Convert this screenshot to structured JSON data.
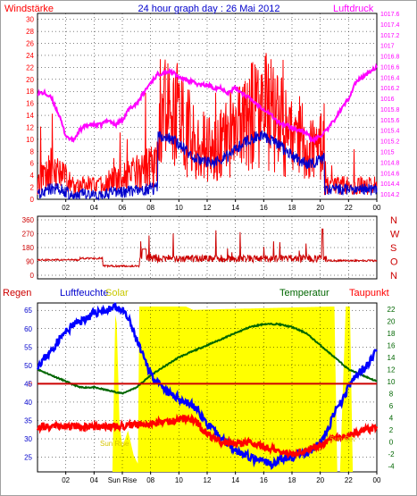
{
  "header": {
    "left_label": "Windstärke",
    "title": "24 hour graph day : 26 Mai 2012",
    "right_label": "Luftdruck"
  },
  "x_ticks": [
    "02",
    "04",
    "06",
    "08",
    "10",
    "12",
    "14",
    "16",
    "18",
    "20",
    "22",
    "00"
  ],
  "x_ticks_bottom": [
    "02",
    "04",
    "Sun Rise",
    "08",
    "10",
    "12",
    "14",
    "16",
    "18",
    "20",
    "22",
    "00"
  ],
  "colors": {
    "wind": "#ff0000",
    "gust": "#0000cc",
    "pressure": "#ff00ff",
    "direction": "#cc0000",
    "temperature": "#006600",
    "dewpoint": "#ff0000",
    "humidity": "#0000ff",
    "solar": "#ffff00",
    "rain": "#cc0000"
  },
  "chart_data": [
    {
      "type": "line",
      "panel": "wind-pressure",
      "series": [
        {
          "name": "Windstärke",
          "axis": "left"
        },
        {
          "name": "Luftdruck",
          "axis": "right",
          "x": [
            0,
            0.5,
            1,
            1.5,
            2,
            2.5,
            3,
            3.5,
            4,
            4.5,
            5,
            5.5,
            6,
            6.5,
            7,
            7.5,
            8,
            8.5,
            9,
            9.5,
            10,
            10.5,
            11,
            11.5,
            12,
            12.5,
            13,
            13.5,
            14,
            14.5,
            15,
            15.5,
            16,
            16.5,
            17,
            17.5,
            18,
            18.5,
            19,
            19.5,
            20,
            20.5,
            21,
            21.5,
            22,
            22.5,
            23,
            23.5,
            24
          ],
          "values": [
            1016.1,
            1016.1,
            1016.0,
            1015.7,
            1015.3,
            1015.2,
            1015.4,
            1015.5,
            1015.5,
            1015.5,
            1015.6,
            1015.5,
            1015.6,
            1015.8,
            1015.9,
            1016.1,
            1016.3,
            1016.45,
            1016.5,
            1016.5,
            1016.4,
            1016.35,
            1016.3,
            1016.25,
            1016.25,
            1016.2,
            1016.2,
            1016.1,
            1016.2,
            1016.1,
            1016.0,
            1015.9,
            1015.8,
            1015.7,
            1015.55,
            1015.5,
            1015.45,
            1015.4,
            1015.35,
            1015.2,
            1015.3,
            1015.4,
            1015.6,
            1015.8,
            1016.0,
            1016.3,
            1016.4,
            1016.5,
            1016.6
          ]
        }
      ],
      "y_left_ticks": [
        "0",
        "2",
        "4",
        "6",
        "8",
        "10",
        "12",
        "14",
        "16",
        "18",
        "20",
        "22",
        "24",
        "26",
        "28",
        "30"
      ],
      "y_left_range": [
        0,
        31
      ],
      "y_right_ticks": [
        "1014.2",
        "1014.4",
        "1014.6",
        "1014.8",
        "1015",
        "1015.2",
        "1015.4",
        "1015.6",
        "1015.8",
        "1016",
        "1016.2",
        "1016.4",
        "1016.6",
        "1016.8",
        "1017",
        "1017.2",
        "1017.4",
        "1017.6"
      ],
      "y_right_range": [
        1014.1,
        1017.6
      ]
    },
    {
      "type": "line",
      "panel": "wind-direction",
      "y_ticks": [
        "360",
        "270",
        "180",
        "90",
        "0"
      ],
      "y_range": [
        0,
        360
      ],
      "compass_labels": [
        "N",
        "W",
        "S",
        "O",
        "N"
      ]
    },
    {
      "type": "line",
      "panel": "weather",
      "labels": {
        "rain": "Regen",
        "humidity": "Luftfeuchte",
        "solar": "Solar",
        "temperature": "Temperatur",
        "dewpoint": "Taupunkt",
        "sunrise": "Sun Rise",
        "sunset": "Sun Set"
      },
      "y_left_ticks": [
        "25",
        "30",
        "35",
        "40",
        "45",
        "50",
        "55",
        "60",
        "65"
      ],
      "y_left_range": [
        21,
        67
      ],
      "y_right_ticks": [
        "-4",
        "-2",
        "0",
        "2",
        "4",
        "6",
        "8",
        "10",
        "12",
        "14",
        "16",
        "18",
        "20",
        "22"
      ],
      "y_right_range": [
        -5,
        23
      ],
      "rain_zero_label": "0",
      "series": [
        {
          "name": "Luftfeuchte",
          "axis": "left",
          "x": [
            0,
            0.5,
            1,
            1.5,
            2,
            2.5,
            3,
            3.5,
            4,
            4.5,
            5,
            5.5,
            6,
            6.5,
            7,
            7.5,
            8,
            8.5,
            9,
            9.5,
            10,
            10.5,
            11,
            11.5,
            12,
            12.5,
            13,
            13.5,
            14,
            14.5,
            15,
            15.5,
            16,
            16.5,
            17,
            17.5,
            18,
            18.5,
            19,
            19.5,
            20,
            20.5,
            21,
            21.5,
            22,
            22.5,
            23,
            23.5,
            24
          ],
          "values": [
            50,
            52,
            54,
            57,
            59,
            61,
            62,
            63,
            64,
            65,
            65,
            66,
            65,
            62,
            57,
            52,
            48,
            45,
            43,
            42,
            41,
            40,
            39,
            37,
            34,
            32,
            30,
            29,
            27,
            26,
            25,
            24,
            24,
            23,
            24,
            25,
            25,
            26,
            26,
            27,
            29,
            32,
            37,
            40,
            44,
            47,
            49,
            51,
            55
          ]
        },
        {
          "name": "Temperatur",
          "axis": "right",
          "x": [
            0,
            1,
            2,
            3,
            4,
            5,
            6,
            7,
            8,
            9,
            10,
            11,
            12,
            13,
            14,
            15,
            16,
            17,
            18,
            19,
            20,
            21,
            22,
            23,
            24
          ],
          "values": [
            12,
            11,
            10,
            9,
            9,
            8.5,
            8,
            9,
            11,
            12.5,
            14,
            15,
            16,
            17,
            18,
            19,
            19.5,
            19.5,
            19,
            18,
            16,
            14,
            12,
            11,
            10
          ]
        },
        {
          "name": "Taupunkt",
          "axis": "right",
          "x": [
            0,
            2,
            4,
            6,
            8,
            9,
            10,
            10.5,
            11,
            11.5,
            12,
            13,
            14,
            15,
            16,
            17,
            18,
            19,
            20,
            21,
            22,
            23,
            24
          ],
          "values": [
            2.5,
            2.5,
            2.4,
            2.6,
            3,
            3.3,
            3.6,
            3.9,
            3.5,
            2.6,
            1.2,
            0,
            -0.5,
            0,
            -0.8,
            -1.5,
            -2,
            -1.5,
            -0.5,
            0.5,
            1,
            1.8,
            2.2
          ]
        },
        {
          "name": "Solar",
          "axis": "none",
          "x": [
            0,
            5.3,
            5.5,
            5.6,
            5.8,
            6.0,
            6.4,
            6.8,
            7.1,
            7.2,
            10.5,
            11.0,
            20.8,
            21.0,
            21.2,
            21.4,
            21.8,
            22.1,
            22.3,
            23.0,
            24
          ],
          "values": [
            0,
            0,
            0.95,
            0.9,
            0.3,
            0.15,
            0.25,
            0.1,
            0.05,
            1,
            1,
            0.98,
            1,
            1,
            0,
            0,
            1,
            1,
            0,
            0,
            0
          ]
        }
      ]
    }
  ]
}
